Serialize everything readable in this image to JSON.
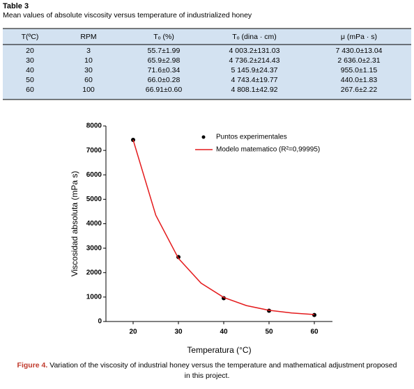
{
  "table": {
    "label": "Table 3",
    "caption": "Mean values of absolute viscosity versus temperature of industrialized honey",
    "header": [
      "T(ºC)",
      "RPM",
      "Tₒ (%)",
      "Tₒ (dina · cm)",
      "μ (mPa · s)"
    ],
    "rows": [
      [
        "20",
        "3",
        "55.7±1.99",
        "4 003.2±131.03",
        "7 430.0±13.04"
      ],
      [
        "30",
        "10",
        "65.9±2.98",
        "4 736.2±214.43",
        "2 636.0±2.31"
      ],
      [
        "40",
        "30",
        "71.6±0.34",
        "5 145.9±24.37",
        "955.0±1.15"
      ],
      [
        "50",
        "60",
        "66.0±0.28",
        "4 743.4±19.77",
        "440.0±1.83"
      ],
      [
        "60",
        "100",
        "66.91±0.60",
        "4 808.1±42.92",
        "267.6±2.22"
      ]
    ]
  },
  "chart_data": {
    "type": "scatter",
    "x_label": "Temperatura (°C)",
    "y_label": "Viscosidad absoluta (mPa s)",
    "xlim": [
      14,
      64
    ],
    "xticks": [
      20,
      30,
      40,
      50,
      60
    ],
    "ylim": [
      0,
      8000
    ],
    "yticks": [
      0,
      1000,
      2000,
      3000,
      4000,
      5000,
      6000,
      7000,
      8000
    ],
    "legend": "upper right",
    "series": [
      {
        "name": "Puntos experimentales",
        "color": "#000000",
        "x": [
          20,
          30,
          40,
          50,
          60
        ],
        "values": [
          7430,
          2636,
          955,
          440,
          268
        ]
      },
      {
        "name": "Modelo matematico (R²=0,99995)",
        "type": "line",
        "color": "#e41a1c",
        "x": [
          20,
          25,
          30,
          35,
          40,
          45,
          50,
          55,
          60
        ],
        "values": [
          7430,
          4350,
          2583,
          1568,
          985,
          651,
          459,
          349,
          285
        ]
      }
    ]
  },
  "figure": {
    "label": "Figure 4.",
    "caption": "Variation of the viscosity of industrial honey versus the temperature and mathematical adjustment proposed in this project."
  }
}
